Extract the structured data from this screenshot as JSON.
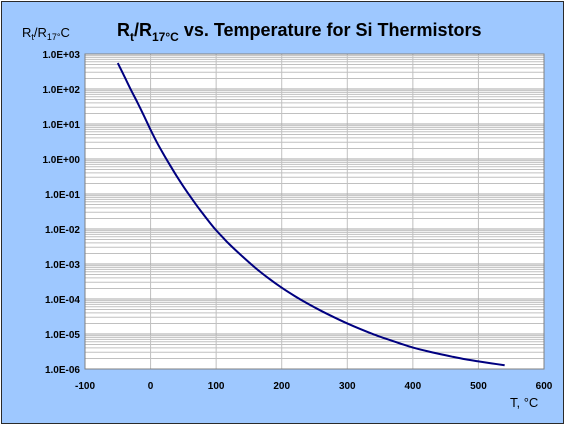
{
  "chart_data": {
    "type": "line",
    "title_parts": {
      "r": "R",
      "t_sub": "t",
      "slash": "/R",
      "ref_sub": "17°C",
      "rest": " vs. Temperature for Si Thermistors"
    },
    "ylabel_parts": {
      "r": "R",
      "t_sub": "t",
      "slash": "/R",
      "ref_sub": "17°",
      "unit": "C"
    },
    "xlabel": "T, °C",
    "xlim": [
      -100,
      600
    ],
    "ylim": [
      1e-06,
      1000
    ],
    "yscale": "log",
    "grid": true,
    "legend": "none",
    "x_ticks": [
      "-100",
      "0",
      "100",
      "200",
      "300",
      "400",
      "500",
      "600"
    ],
    "y_ticks": [
      "1.0E-06",
      "1.0E-05",
      "1.0E-04",
      "1.0E-03",
      "1.0E-02",
      "1.0E-01",
      "1.0E+00",
      "1.0E+01",
      "1.0E+02",
      "1.0E+03"
    ],
    "series": [
      {
        "color": "#000080",
        "x": [
          -50,
          -40,
          -30,
          -20,
          -10,
          0,
          10,
          20,
          30,
          40,
          50,
          60,
          70,
          80,
          90,
          100,
          110,
          120,
          140,
          160,
          180,
          200,
          220,
          240,
          260,
          280,
          300,
          320,
          340,
          360,
          380,
          400,
          420,
          440,
          460,
          480,
          500,
          520,
          540
        ],
        "y": [
          550,
          230,
          95,
          41,
          17,
          6.8,
          2.9,
          1.35,
          0.65,
          0.32,
          0.165,
          0.088,
          0.048,
          0.027,
          0.0155,
          0.0092,
          0.0058,
          0.0037,
          0.00165,
          0.00077,
          0.00039,
          0.00021,
          0.000121,
          7.3e-05,
          4.6e-05,
          3e-05,
          2e-05,
          1.38e-05,
          9.8e-06,
          7.2e-06,
          5.4e-06,
          4.1e-06,
          3.3e-06,
          2.7e-06,
          2.25e-06,
          1.9e-06,
          1.65e-06,
          1.45e-06,
          1.28e-06
        ]
      }
    ]
  },
  "colors": {
    "frame": "#9ec8ff",
    "plot_bg": "#ffffff",
    "grid": "#c0c0c0",
    "line": "#000080"
  }
}
